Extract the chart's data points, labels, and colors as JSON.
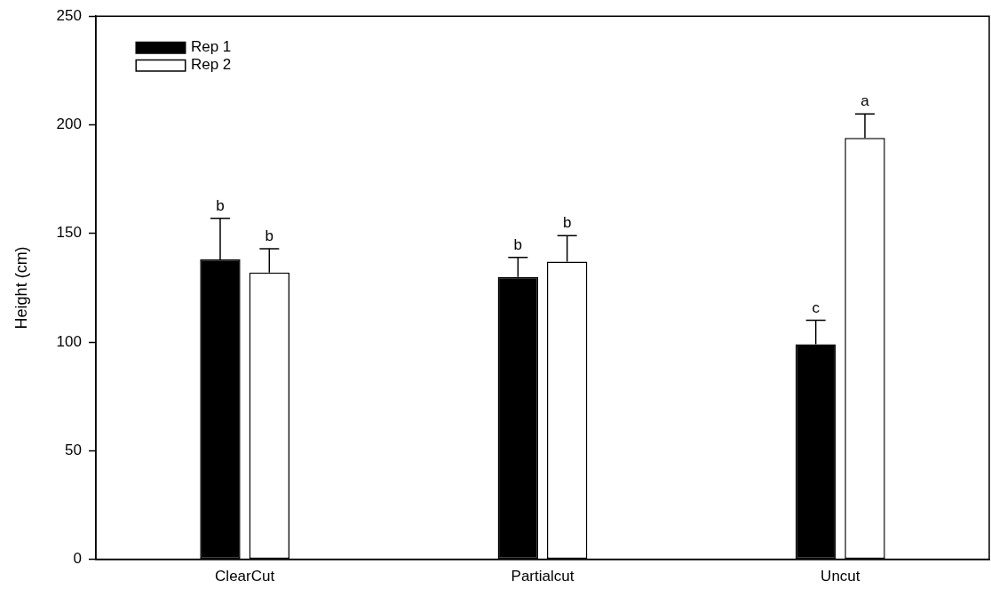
{
  "chart_data": {
    "type": "bar",
    "ylabel": "Height (cm)",
    "categories": [
      "ClearCut",
      "Partialcut",
      "Uncut"
    ],
    "series": [
      {
        "name": "Rep 1",
        "color": "#000000",
        "values": [
          138,
          130,
          99
        ],
        "errors": [
          [
            138,
            157
          ],
          [
            130,
            139
          ],
          [
            99,
            110
          ]
        ],
        "value_labels": [
          "b",
          "b",
          "c"
        ]
      },
      {
        "name": "Rep 2",
        "color": "#ffffff",
        "values": [
          132,
          137,
          194
        ],
        "errors": [
          [
            132,
            143
          ],
          [
            137,
            149
          ],
          [
            194,
            205
          ]
        ],
        "value_labels": [
          "b",
          "b",
          "a"
        ]
      }
    ],
    "ylim": [
      0,
      250
    ],
    "yticks": [
      0,
      50,
      100,
      150,
      200,
      250
    ],
    "grid": false,
    "legend": "top left"
  }
}
